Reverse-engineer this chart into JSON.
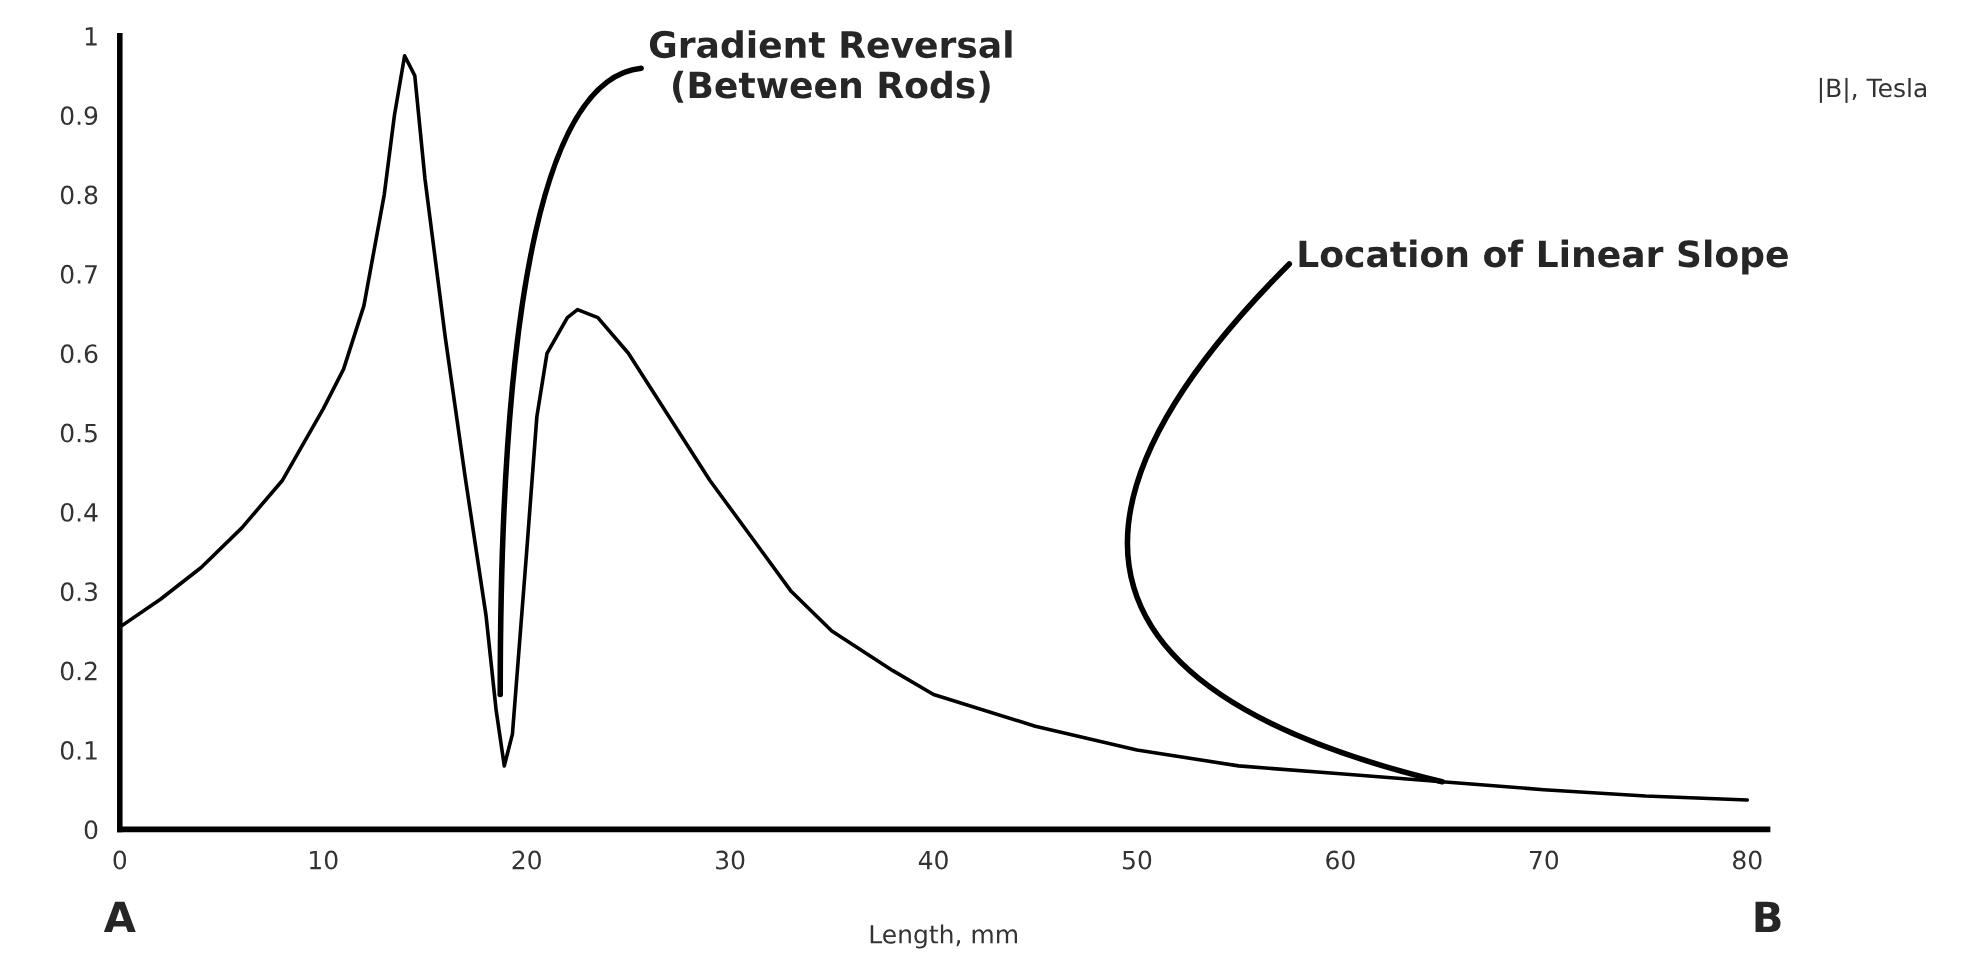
{
  "chart_data": {
    "type": "line",
    "xlabel": "Length, mm",
    "ylabel": "|B|, Tesla",
    "series": [
      {
        "color": "#000000",
        "x": [
          0,
          2,
          4,
          6,
          8,
          10,
          11,
          12,
          13,
          13.5,
          14,
          14.5,
          15,
          16,
          17,
          18,
          18.5,
          18.9,
          19.3,
          20,
          20.5,
          21,
          22,
          22.5,
          23.5,
          25,
          27,
          29,
          31,
          33,
          35,
          38,
          40,
          45,
          50,
          55,
          60,
          65,
          70,
          75,
          80
        ],
        "values": [
          0.255,
          0.29,
          0.33,
          0.38,
          0.44,
          0.53,
          0.58,
          0.66,
          0.8,
          0.9,
          0.975,
          0.95,
          0.82,
          0.62,
          0.44,
          0.27,
          0.15,
          0.08,
          0.12,
          0.35,
          0.52,
          0.6,
          0.645,
          0.655,
          0.645,
          0.6,
          0.52,
          0.44,
          0.37,
          0.3,
          0.25,
          0.2,
          0.17,
          0.13,
          0.1,
          0.08,
          0.07,
          0.06,
          0.05,
          0.042,
          0.037
        ]
      }
    ],
    "xlim": [
      0,
      81
    ],
    "ylim": [
      0,
      1
    ],
    "xticks": [
      0,
      10,
      20,
      30,
      40,
      50,
      60,
      70,
      80
    ],
    "yticks": [
      0,
      0.1,
      0.2,
      0.3,
      0.4,
      0.5,
      0.6,
      0.7,
      0.8,
      0.9,
      1
    ],
    "grid": false,
    "legend": false,
    "marker": "none",
    "line_style": "solid",
    "annotations": [
      {
        "text": "Gradient Reversal\n(Between Rods)",
        "x": 18.7,
        "y": 0.17
      },
      {
        "text": "Location of Linear Slope",
        "x": 65,
        "y": 0.06
      },
      "A",
      "B"
    ]
  }
}
